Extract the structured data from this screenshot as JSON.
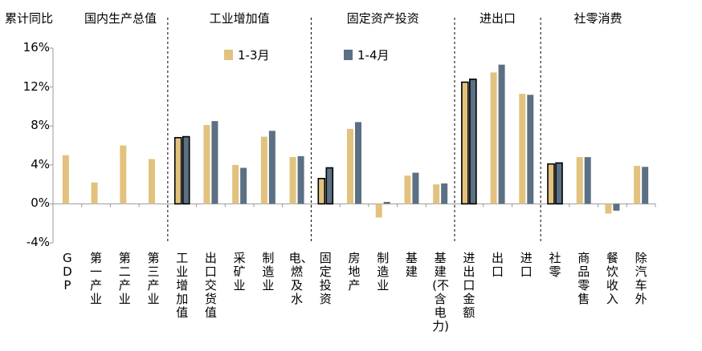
{
  "chart_data": {
    "type": "bar",
    "title": "",
    "ylabel": "累计同比",
    "ylim": [
      -4,
      16
    ],
    "yticks": [
      "16%",
      "12%",
      "8%",
      "4%",
      "0%",
      "-4%"
    ],
    "ytick_values": [
      16,
      12,
      8,
      4,
      0,
      -4
    ],
    "grid": false,
    "legend_position": "top",
    "colors": {
      "s1": "#E2C27E",
      "s2": "#5B7083",
      "highlight_outline": "#000000"
    },
    "groups": [
      {
        "title": "国内生产总值",
        "start": 0,
        "end": 3
      },
      {
        "title": "工业增加值",
        "start": 4,
        "end": 8
      },
      {
        "title": "固定资产投资",
        "start": 9,
        "end": 13
      },
      {
        "title": "进出口",
        "start": 14,
        "end": 16
      },
      {
        "title": "社零消费",
        "start": 17,
        "end": 20
      }
    ],
    "categories": [
      "GDP",
      "第一产业",
      "第二产业",
      "第三产业",
      "工业增加值",
      "出口交货值",
      "采矿业",
      "制造业",
      "电、燃及水",
      "固定投资",
      "房地产",
      "制造业",
      "基建",
      "基建(不含电力)",
      "进出口金额",
      "出口",
      "进口",
      "社零",
      "商品零售",
      "餐饮收入",
      "除汽车外"
    ],
    "highlighted": [
      4,
      9,
      14,
      17
    ],
    "series": [
      {
        "name": "1-3月",
        "values": [
          5.0,
          2.2,
          6.0,
          4.6,
          6.8,
          8.1,
          4.0,
          6.9,
          4.8,
          2.6,
          7.7,
          -1.4,
          2.9,
          2.0,
          12.5,
          13.5,
          11.3,
          4.1,
          4.8,
          -1.0,
          3.9
        ]
      },
      {
        "name": "1-4月",
        "values": [
          null,
          null,
          null,
          null,
          6.9,
          8.5,
          3.7,
          7.5,
          4.9,
          3.7,
          8.4,
          0.2,
          3.2,
          2.1,
          12.8,
          14.3,
          11.2,
          4.2,
          4.8,
          -0.7,
          3.8
        ]
      }
    ]
  }
}
